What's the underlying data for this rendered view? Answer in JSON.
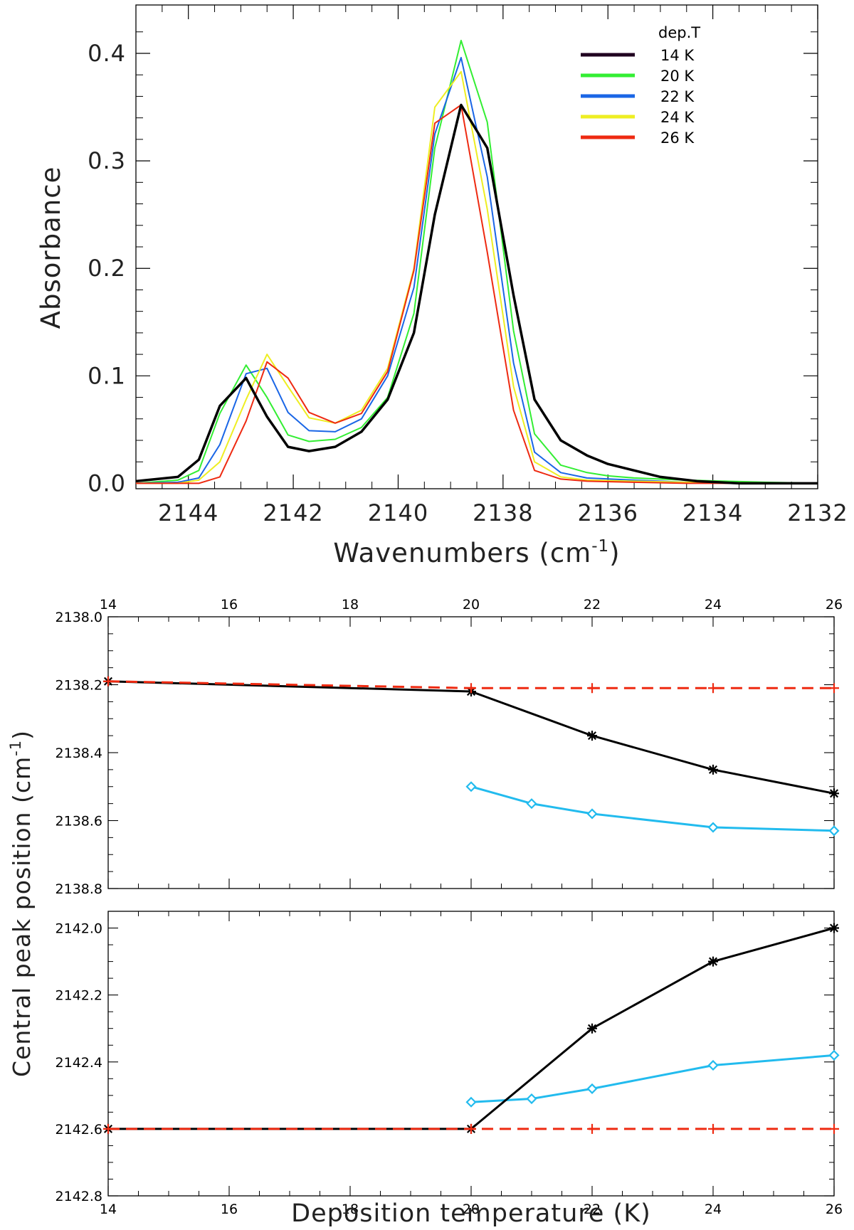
{
  "chart_data": [
    {
      "type": "line",
      "id": "spectra",
      "xlabel": "Wavenumbers (cm",
      "xlabel_sup": "-1",
      "xlabel_close": ")",
      "ylabel": "Absorbance",
      "xlim": [
        2145,
        2132
      ],
      "ylim": [
        -0.005,
        0.445
      ],
      "x_ticks": [
        2144,
        2142,
        2140,
        2138,
        2136,
        2134,
        2132
      ],
      "y_ticks": [
        0.0,
        0.1,
        0.2,
        0.3,
        0.4
      ],
      "y_tick_labels": [
        "0.0",
        "0.1",
        "0.2",
        "0.3",
        "0.4"
      ],
      "legend_title": "dep.T",
      "legend_position": "top-right",
      "series": [
        {
          "name": "14 K",
          "color": "#000000",
          "legend_color": "#200020",
          "width": 3.5,
          "x": [
            2145,
            2144.2,
            2143.8,
            2143.4,
            2142.9,
            2142.5,
            2142.1,
            2141.7,
            2141.2,
            2140.7,
            2140.2,
            2139.7,
            2139.3,
            2138.8,
            2138.3,
            2137.8,
            2137.4,
            2136.9,
            2136.4,
            2136.0,
            2135.5,
            2135.0,
            2134.3,
            2133.5,
            2132.5,
            2132.0
          ],
          "y": [
            0.002,
            0.006,
            0.022,
            0.072,
            0.098,
            0.062,
            0.034,
            0.03,
            0.034,
            0.048,
            0.078,
            0.14,
            0.25,
            0.352,
            0.312,
            0.175,
            0.078,
            0.04,
            0.026,
            0.018,
            0.012,
            0.006,
            0.002,
            0.0,
            0.0,
            0.0
          ]
        },
        {
          "name": "20 K",
          "color": "#33ee33",
          "legend_color": "#33ee33",
          "width": 2,
          "x": [
            2145,
            2144.2,
            2143.8,
            2143.4,
            2142.9,
            2142.5,
            2142.1,
            2141.7,
            2141.2,
            2140.7,
            2140.2,
            2139.7,
            2139.3,
            2138.8,
            2138.3,
            2137.8,
            2137.4,
            2136.9,
            2136.4,
            2136.0,
            2135.5,
            2134.5,
            2133.0,
            2132.0
          ],
          "y": [
            0.0,
            0.003,
            0.012,
            0.065,
            0.11,
            0.08,
            0.045,
            0.039,
            0.041,
            0.052,
            0.08,
            0.158,
            0.312,
            0.412,
            0.336,
            0.142,
            0.046,
            0.017,
            0.01,
            0.007,
            0.005,
            0.003,
            0.001,
            0.0
          ]
        },
        {
          "name": "22 K",
          "color": "#1a66e6",
          "legend_color": "#1a66e6",
          "width": 2,
          "x": [
            2145,
            2144.2,
            2143.8,
            2143.4,
            2142.9,
            2142.5,
            2142.1,
            2141.7,
            2141.2,
            2140.7,
            2140.2,
            2139.7,
            2139.3,
            2138.8,
            2138.3,
            2137.8,
            2137.4,
            2136.9,
            2136.4,
            2135.5,
            2134.5,
            2132.0
          ],
          "y": [
            0.0,
            0.001,
            0.005,
            0.036,
            0.102,
            0.107,
            0.066,
            0.049,
            0.048,
            0.06,
            0.1,
            0.182,
            0.325,
            0.396,
            0.285,
            0.112,
            0.029,
            0.01,
            0.005,
            0.003,
            0.001,
            0.0
          ]
        },
        {
          "name": "24 K",
          "color": "#eeee22",
          "legend_color": "#eeee22",
          "width": 2,
          "x": [
            2145,
            2144.2,
            2143.8,
            2143.4,
            2142.9,
            2142.5,
            2142.1,
            2141.7,
            2141.2,
            2140.7,
            2140.2,
            2139.7,
            2139.3,
            2138.8,
            2138.3,
            2137.8,
            2137.4,
            2136.9,
            2136.4,
            2135.5,
            2134.5,
            2132.0
          ],
          "y": [
            0.0,
            0.0,
            0.003,
            0.02,
            0.078,
            0.12,
            0.09,
            0.061,
            0.056,
            0.068,
            0.107,
            0.2,
            0.35,
            0.383,
            0.255,
            0.09,
            0.02,
            0.006,
            0.003,
            0.002,
            0.001,
            0.0
          ]
        },
        {
          "name": "26 K",
          "color": "#ee2a11",
          "legend_color": "#ee2a11",
          "width": 2,
          "x": [
            2145,
            2144.2,
            2143.8,
            2143.4,
            2142.9,
            2142.5,
            2142.1,
            2141.7,
            2141.2,
            2140.7,
            2140.2,
            2139.7,
            2139.3,
            2138.8,
            2138.3,
            2137.8,
            2137.4,
            2136.9,
            2136.4,
            2135.5,
            2134.5,
            2132.0
          ],
          "y": [
            0.0,
            0.0,
            0.0,
            0.006,
            0.058,
            0.113,
            0.098,
            0.066,
            0.056,
            0.065,
            0.104,
            0.198,
            0.335,
            0.352,
            0.215,
            0.068,
            0.012,
            0.004,
            0.002,
            0.001,
            0.0,
            0.0
          ]
        }
      ]
    },
    {
      "type": "line",
      "id": "peaks",
      "xlabel": "Deposition temperature (K)",
      "ylabel": "Central peak position (cm",
      "ylabel_sup": "-1",
      "ylabel_close": ")",
      "xlim": [
        14,
        26
      ],
      "x_ticks": [
        14,
        16,
        18,
        20,
        22,
        24,
        26
      ],
      "panels": [
        {
          "name": "upper",
          "ylim": [
            2138.0,
            2138.8
          ],
          "y_ticks": [
            2138.0,
            2138.2,
            2138.4,
            2138.6,
            2138.8
          ],
          "y_tick_labels": [
            "2138.0",
            "2138.2",
            "2138.4",
            "2138.6",
            "2138.8"
          ],
          "series": [
            {
              "name": "black-asterisk",
              "color": "#000000",
              "style": "solid",
              "marker": "asterisk",
              "x": [
                14,
                20,
                22,
                24,
                26
              ],
              "y": [
                2138.19,
                2138.22,
                2138.35,
                2138.45,
                2138.52
              ]
            },
            {
              "name": "cyan-diamond",
              "color": "#22bbee",
              "style": "solid",
              "marker": "diamond",
              "x": [
                20,
                21,
                22,
                24,
                26
              ],
              "y": [
                2138.5,
                2138.55,
                2138.58,
                2138.62,
                2138.63
              ]
            },
            {
              "name": "red-dashed",
              "color": "#ee2a11",
              "style": "dashed",
              "marker": "plus",
              "x": [
                14,
                20,
                22,
                24,
                26
              ],
              "y": [
                2138.19,
                2138.21,
                2138.21,
                2138.21,
                2138.21
              ]
            }
          ]
        },
        {
          "name": "lower",
          "ylim": [
            2141.95,
            2142.8
          ],
          "y_ticks": [
            2142.0,
            2142.2,
            2142.4,
            2142.6,
            2142.8
          ],
          "y_tick_labels": [
            "2142.0",
            "2142.2",
            "2142.4",
            "2142.6",
            "2142.8"
          ],
          "series": [
            {
              "name": "black-asterisk",
              "color": "#000000",
              "style": "solid",
              "marker": "asterisk",
              "x": [
                14,
                20,
                22,
                24,
                26
              ],
              "y": [
                2142.6,
                2142.6,
                2142.3,
                2142.1,
                2142.0
              ]
            },
            {
              "name": "cyan-diamond",
              "color": "#22bbee",
              "style": "solid",
              "marker": "diamond",
              "x": [
                20,
                21,
                22,
                24,
                26
              ],
              "y": [
                2142.52,
                2142.51,
                2142.48,
                2142.41,
                2142.38
              ]
            },
            {
              "name": "red-dashed",
              "color": "#ee2a11",
              "style": "dashed",
              "marker": "plus",
              "x": [
                14,
                20,
                22,
                24,
                26
              ],
              "y": [
                2142.6,
                2142.6,
                2142.6,
                2142.6,
                2142.6
              ]
            }
          ]
        }
      ]
    }
  ]
}
